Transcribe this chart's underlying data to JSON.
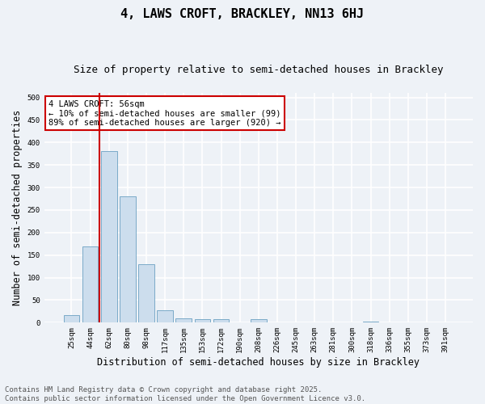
{
  "title": "4, LAWS CROFT, BRACKLEY, NN13 6HJ",
  "subtitle": "Size of property relative to semi-detached houses in Brackley",
  "xlabel": "Distribution of semi-detached houses by size in Brackley",
  "ylabel": "Number of semi-detached properties",
  "categories": [
    "25sqm",
    "44sqm",
    "62sqm",
    "80sqm",
    "98sqm",
    "117sqm",
    "135sqm",
    "153sqm",
    "172sqm",
    "190sqm",
    "208sqm",
    "226sqm",
    "245sqm",
    "263sqm",
    "281sqm",
    "300sqm",
    "318sqm",
    "336sqm",
    "355sqm",
    "373sqm",
    "391sqm"
  ],
  "values": [
    17,
    170,
    380,
    280,
    130,
    28,
    10,
    8,
    7,
    0,
    7,
    0,
    0,
    0,
    0,
    0,
    3,
    0,
    0,
    0,
    0
  ],
  "bar_color": "#ccdded",
  "bar_edge_color": "#7aaac8",
  "vline_color": "#cc0000",
  "annotation_text": "4 LAWS CROFT: 56sqm\n← 10% of semi-detached houses are smaller (99)\n89% of semi-detached houses are larger (920) →",
  "annotation_box_color": "#ffffff",
  "annotation_box_edge_color": "#cc0000",
  "ylim": [
    0,
    510
  ],
  "yticks": [
    0,
    50,
    100,
    150,
    200,
    250,
    300,
    350,
    400,
    450,
    500
  ],
  "footer": "Contains HM Land Registry data © Crown copyright and database right 2025.\nContains public sector information licensed under the Open Government Licence v3.0.",
  "background_color": "#eef2f7",
  "grid_color": "#ffffff",
  "title_fontsize": 11,
  "subtitle_fontsize": 9,
  "tick_fontsize": 6.5,
  "label_fontsize": 8.5,
  "footer_fontsize": 6.5,
  "annotation_fontsize": 7.5
}
